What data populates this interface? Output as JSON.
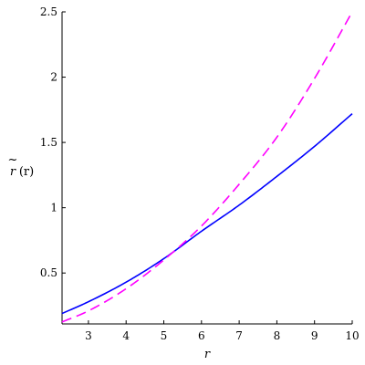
{
  "chart_data": {
    "type": "line",
    "title": "",
    "xlabel": "r",
    "ylabel_tilde": "~",
    "ylabel_var": "r",
    "ylabel_arg": "(r)",
    "xlim": [
      2.3,
      10
    ],
    "ylim": [
      0.11,
      2.5
    ],
    "x_ticks": [
      3,
      4,
      5,
      6,
      7,
      8,
      9,
      10
    ],
    "y_ticks": [
      0.5,
      1,
      1.5,
      2,
      2.5
    ],
    "x_tick_labels": [
      "3",
      "4",
      "5",
      "6",
      "7",
      "8",
      "9",
      "10"
    ],
    "y_tick_labels": [
      "0.5",
      "1",
      "1.5",
      "2",
      "2.5"
    ],
    "grid": false,
    "legend": "none",
    "x": [
      2.3,
      3,
      4,
      5,
      6,
      7,
      8,
      9,
      10
    ],
    "series": [
      {
        "color": "#0000ff",
        "dash": "solid",
        "values": [
          0.19,
          0.28,
          0.43,
          0.61,
          0.82,
          1.02,
          1.24,
          1.47,
          1.72
        ]
      },
      {
        "color": "#ff00ff",
        "dash": "dashed",
        "values": [
          0.125,
          0.21,
          0.38,
          0.6,
          0.86,
          1.18,
          1.54,
          1.99,
          2.5
        ]
      }
    ]
  }
}
